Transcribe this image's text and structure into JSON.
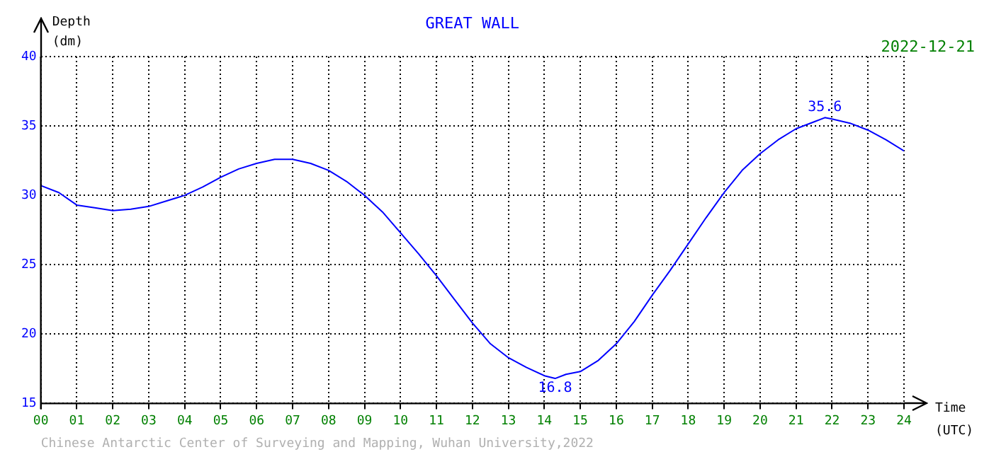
{
  "chart_data": {
    "type": "line",
    "title": "GREAT WALL",
    "xlabel": "Time (UTC)",
    "ylabel": "Depth (dm)",
    "x": [
      0,
      0.5,
      1,
      1.5,
      2,
      2.5,
      3,
      3.5,
      4,
      4.5,
      5,
      5.5,
      6,
      6.5,
      7,
      7.5,
      8,
      8.5,
      9,
      9.5,
      10,
      10.5,
      11,
      11.5,
      12,
      12.5,
      13,
      13.5,
      14,
      14.3,
      14.6,
      15,
      15.5,
      16,
      16.5,
      17,
      17.5,
      18,
      18.5,
      19,
      19.5,
      20,
      20.5,
      21,
      21.5,
      21.8,
      22,
      22.5,
      23,
      23.5,
      24
    ],
    "series": [
      {
        "color": "#0000ff",
        "values": [
          30.7,
          30.2,
          29.3,
          29.1,
          28.9,
          29.0,
          29.2,
          29.6,
          30.0,
          30.6,
          31.3,
          31.9,
          32.3,
          32.6,
          32.6,
          32.3,
          31.8,
          31.0,
          30.0,
          28.8,
          27.3,
          25.8,
          24.2,
          22.5,
          20.8,
          19.3,
          18.3,
          17.6,
          17.0,
          16.8,
          17.1,
          17.3,
          18.1,
          19.3,
          20.9,
          22.8,
          24.6,
          26.5,
          28.4,
          30.2,
          31.8,
          33.0,
          34.0,
          34.8,
          35.3,
          35.6,
          35.5,
          35.2,
          34.7,
          34.0,
          33.2
        ]
      }
    ],
    "xlim": [
      0,
      24
    ],
    "xticks": [
      {
        "value": 0,
        "label": "00"
      },
      {
        "value": 1,
        "label": "01"
      },
      {
        "value": 2,
        "label": "02"
      },
      {
        "value": 3,
        "label": "03"
      },
      {
        "value": 4,
        "label": "04"
      },
      {
        "value": 5,
        "label": "05"
      },
      {
        "value": 6,
        "label": "06"
      },
      {
        "value": 7,
        "label": "07"
      },
      {
        "value": 8,
        "label": "08"
      },
      {
        "value": 9,
        "label": "09"
      },
      10,
      11,
      12,
      13,
      14,
      15,
      16,
      17,
      18,
      19,
      20,
      21,
      22,
      23,
      24
    ],
    "ylim": [
      15,
      40
    ],
    "yticks": [
      15,
      20,
      25,
      30,
      35,
      40
    ],
    "grid": true,
    "legend": false,
    "marker": "none",
    "line_style": "solid",
    "annotations": [
      {
        "text": "35.6",
        "x": 21.8,
        "y": 35.6
      },
      {
        "text": "16.8",
        "x": 14.3,
        "y": 16.8
      },
      "2022-12-21",
      "Chinese Antarctic Center of Surveying and Mapping, Wuhan University,2022"
    ]
  }
}
